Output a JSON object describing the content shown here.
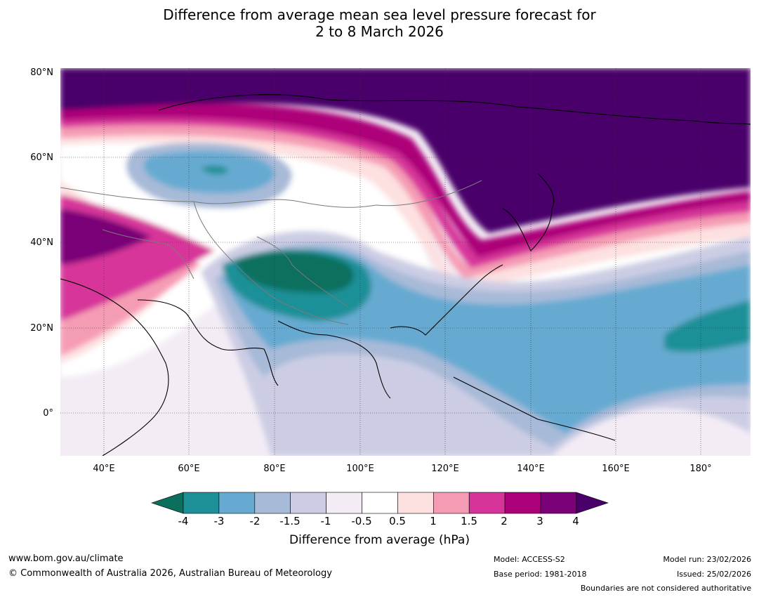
{
  "title_line1": "Difference from average mean sea level pressure forecast for",
  "title_line2": "2 to 8 March 2026",
  "lat_labels": [
    "80°N",
    "60°N",
    "40°N",
    "20°N",
    "0°"
  ],
  "lon_labels": [
    "40°E",
    "60°E",
    "80°E",
    "100°E",
    "120°E",
    "140°E",
    "160°E",
    "180°"
  ],
  "colorbar": {
    "title": "Difference from average (hPa)",
    "ticks": [
      "-4",
      "-3",
      "-2",
      "-1.5",
      "-1",
      "-0.5",
      "0.5",
      "1",
      "1.5",
      "2",
      "3",
      "4"
    ],
    "colors": [
      "#0b6f5e",
      "#1e9098",
      "#66aad1",
      "#a7bad8",
      "#cccde4",
      "#f3ecf5",
      "#ffffff",
      "#fde0e0",
      "#f59cb5",
      "#d7349a",
      "#ad0179",
      "#7a0177",
      "#49006a"
    ]
  },
  "footer": {
    "url": "www.bom.gov.au/climate",
    "copyright": "© Commonwealth of Australia 2026, Australian Bureau of Meteorology",
    "model": "Model: ACCESS-S2",
    "base_period": "Base period: 1981-2018",
    "model_run": "Model run: 23/02/2026",
    "issued": "Issued: 25/02/2026",
    "boundaries": "Boundaries are not considered authoritative"
  }
}
